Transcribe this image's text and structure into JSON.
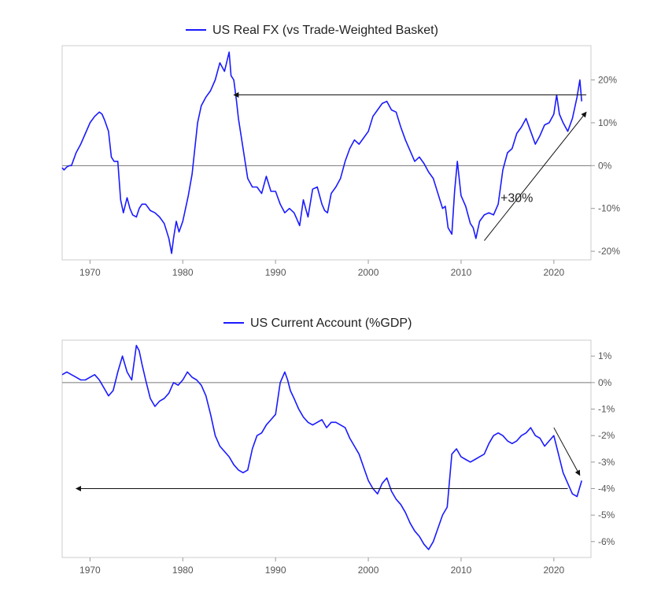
{
  "chart_data": [
    {
      "type": "line",
      "title": "",
      "xlabel": "",
      "ylabel": "",
      "xlim": [
        1967,
        2024
      ],
      "ylim": [
        -22,
        28
      ],
      "y_unit": "%",
      "x_ticks": [
        1970,
        1980,
        1990,
        2000,
        2010,
        2020
      ],
      "y_ticks": [
        20,
        10,
        0,
        -10,
        -20
      ],
      "y_tick_labels": [
        "20%",
        "10%",
        "0%",
        "-10%",
        "-20%"
      ],
      "y_axis_side": "right",
      "grid": false,
      "legend": "top-center",
      "zero_line": true,
      "series": [
        {
          "name": "US Real FX (vs Trade-Weighted Basket)",
          "color": "#1a1aff",
          "x": [
            1967.0,
            1967.2,
            1967.5,
            1967.8,
            1968.0,
            1968.5,
            1969.0,
            1969.5,
            1970.0,
            1970.5,
            1971.0,
            1971.3,
            1971.6,
            1972.0,
            1972.3,
            1972.6,
            1973.0,
            1973.3,
            1973.6,
            1974.0,
            1974.3,
            1974.6,
            1975.0,
            1975.3,
            1975.6,
            1976.0,
            1976.5,
            1977.0,
            1977.5,
            1978.0,
            1978.5,
            1978.8,
            1979.0,
            1979.3,
            1979.6,
            1980.0,
            1980.3,
            1980.6,
            1981.0,
            1981.3,
            1981.6,
            1982.0,
            1982.5,
            1983.0,
            1983.5,
            1984.0,
            1984.5,
            1985.0,
            1985.2,
            1985.5,
            1985.8,
            1986.0,
            1986.5,
            1987.0,
            1987.5,
            1988.0,
            1988.5,
            1989.0,
            1989.5,
            1990.0,
            1990.5,
            1991.0,
            1991.5,
            1992.0,
            1992.3,
            1992.6,
            1993.0,
            1993.5,
            1994.0,
            1994.5,
            1995.0,
            1995.3,
            1995.6,
            1996.0,
            1996.5,
            1997.0,
            1997.5,
            1998.0,
            1998.5,
            1999.0,
            1999.5,
            2000.0,
            2000.5,
            2001.0,
            2001.5,
            2002.0,
            2002.5,
            2003.0,
            2003.5,
            2004.0,
            2004.5,
            2005.0,
            2005.5,
            2006.0,
            2006.5,
            2007.0,
            2007.5,
            2008.0,
            2008.3,
            2008.6,
            2009.0,
            2009.3,
            2009.6,
            2010.0,
            2010.5,
            2011.0,
            2011.3,
            2011.6,
            2012.0,
            2012.5,
            2013.0,
            2013.5,
            2014.0,
            2014.5,
            2015.0,
            2015.5,
            2016.0,
            2016.5,
            2017.0,
            2017.5,
            2018.0,
            2018.5,
            2019.0,
            2019.5,
            2020.0,
            2020.3,
            2020.6,
            2021.0,
            2021.5,
            2022.0,
            2022.5,
            2022.8,
            2023.0
          ],
          "y": [
            -0.5,
            -1.0,
            -0.3,
            0.0,
            0.0,
            3.0,
            5.0,
            7.5,
            10.0,
            11.5,
            12.5,
            12.0,
            10.5,
            8.0,
            2.0,
            1.0,
            1.0,
            -8.0,
            -11.0,
            -7.5,
            -10.0,
            -11.5,
            -12.0,
            -10.0,
            -9.0,
            -9.0,
            -10.5,
            -11.0,
            -12.0,
            -13.5,
            -17.0,
            -20.5,
            -17.0,
            -13.0,
            -15.5,
            -13.0,
            -10.0,
            -7.0,
            -2.0,
            4.0,
            10.0,
            14.0,
            16.0,
            17.5,
            20.0,
            24.0,
            22.0,
            26.5,
            21.0,
            20.0,
            15.0,
            11.0,
            4.0,
            -3.0,
            -5.0,
            -5.0,
            -6.5,
            -2.5,
            -6.0,
            -6.0,
            -9.0,
            -11.0,
            -10.0,
            -11.0,
            -12.5,
            -14.0,
            -8.0,
            -12.0,
            -5.5,
            -5.0,
            -9.0,
            -10.5,
            -11.0,
            -6.5,
            -5.0,
            -3.0,
            1.0,
            4.0,
            6.0,
            5.0,
            6.5,
            8.0,
            11.5,
            13.0,
            14.5,
            15.0,
            13.0,
            12.5,
            9.0,
            6.0,
            3.5,
            1.0,
            2.0,
            0.5,
            -1.5,
            -3.0,
            -6.5,
            -10.0,
            -9.5,
            -14.5,
            -16.0,
            -6.0,
            1.0,
            -7.0,
            -9.5,
            -13.5,
            -14.5,
            -17.0,
            -13.0,
            -11.5,
            -11.0,
            -11.5,
            -9.0,
            -1.0,
            3.0,
            4.0,
            7.5,
            9.0,
            11.0,
            8.0,
            5.0,
            7.0,
            9.5,
            10.0,
            12.0,
            16.5,
            12.0,
            10.0,
            8.0,
            11.0,
            16.0,
            20.0,
            15.0
          ]
        }
      ],
      "annotations": [
        {
          "type": "horizontal-arrow",
          "from_x": 2023.5,
          "to_x": 1985.5,
          "y": 16.5
        },
        {
          "type": "diagonal-arrow",
          "from_x": 2012.5,
          "from_y": -17.5,
          "to_x": 2023.5,
          "to_y": 12.5
        },
        {
          "type": "text",
          "text": "+30%",
          "x": 2016.0,
          "y": -8.5
        }
      ]
    },
    {
      "type": "line",
      "title": "",
      "xlabel": "",
      "ylabel": "",
      "xlim": [
        1967,
        2024
      ],
      "ylim": [
        -6.6,
        1.6
      ],
      "y_unit": "%",
      "x_ticks": [
        1970,
        1980,
        1990,
        2000,
        2010,
        2020
      ],
      "y_ticks": [
        1,
        0,
        -1,
        -2,
        -3,
        -4,
        -5,
        -6
      ],
      "y_tick_labels": [
        "1%",
        "0%",
        "-1%",
        "-2%",
        "-3%",
        "-4%",
        "-5%",
        "-6%"
      ],
      "y_axis_side": "right",
      "grid": false,
      "legend": "top-center",
      "zero_line": true,
      "series": [
        {
          "name": "US Current Account (%GDP)",
          "color": "#1a1aff",
          "x": [
            1967.0,
            1967.5,
            1968.0,
            1968.5,
            1969.0,
            1969.5,
            1970.0,
            1970.5,
            1971.0,
            1971.5,
            1972.0,
            1972.5,
            1973.0,
            1973.5,
            1974.0,
            1974.5,
            1975.0,
            1975.3,
            1975.6,
            1976.0,
            1976.5,
            1977.0,
            1977.5,
            1978.0,
            1978.5,
            1979.0,
            1979.5,
            1980.0,
            1980.5,
            1981.0,
            1981.5,
            1982.0,
            1982.5,
            1983.0,
            1983.5,
            1984.0,
            1984.5,
            1985.0,
            1985.5,
            1986.0,
            1986.5,
            1987.0,
            1987.5,
            1988.0,
            1988.5,
            1989.0,
            1989.5,
            1990.0,
            1990.5,
            1991.0,
            1991.3,
            1991.6,
            1992.0,
            1992.5,
            1993.0,
            1993.5,
            1994.0,
            1994.5,
            1995.0,
            1995.5,
            1996.0,
            1996.5,
            1997.0,
            1997.5,
            1998.0,
            1998.5,
            1999.0,
            1999.5,
            2000.0,
            2000.5,
            2001.0,
            2001.5,
            2002.0,
            2002.5,
            2003.0,
            2003.5,
            2004.0,
            2004.5,
            2005.0,
            2005.5,
            2006.0,
            2006.5,
            2007.0,
            2007.5,
            2008.0,
            2008.5,
            2009.0,
            2009.5,
            2010.0,
            2010.5,
            2011.0,
            2011.5,
            2012.0,
            2012.5,
            2013.0,
            2013.5,
            2014.0,
            2014.5,
            2015.0,
            2015.5,
            2016.0,
            2016.5,
            2017.0,
            2017.5,
            2018.0,
            2018.5,
            2019.0,
            2019.5,
            2020.0,
            2020.5,
            2021.0,
            2021.5,
            2022.0,
            2022.5,
            2023.0
          ],
          "y": [
            0.3,
            0.4,
            0.3,
            0.2,
            0.1,
            0.1,
            0.2,
            0.3,
            0.1,
            -0.2,
            -0.5,
            -0.3,
            0.4,
            1.0,
            0.4,
            0.1,
            1.4,
            1.2,
            0.7,
            0.1,
            -0.6,
            -0.9,
            -0.7,
            -0.6,
            -0.4,
            0.0,
            -0.1,
            0.1,
            0.4,
            0.2,
            0.1,
            -0.1,
            -0.5,
            -1.2,
            -2.0,
            -2.4,
            -2.6,
            -2.8,
            -3.1,
            -3.3,
            -3.4,
            -3.3,
            -2.5,
            -2.0,
            -1.9,
            -1.6,
            -1.4,
            -1.2,
            0.0,
            0.4,
            0.1,
            -0.3,
            -0.6,
            -1.0,
            -1.3,
            -1.5,
            -1.6,
            -1.5,
            -1.4,
            -1.7,
            -1.5,
            -1.5,
            -1.6,
            -1.7,
            -2.1,
            -2.4,
            -2.7,
            -3.2,
            -3.7,
            -4.0,
            -4.2,
            -3.8,
            -3.6,
            -4.1,
            -4.4,
            -4.6,
            -4.9,
            -5.3,
            -5.6,
            -5.8,
            -6.1,
            -6.3,
            -6.0,
            -5.5,
            -5.0,
            -4.7,
            -2.7,
            -2.5,
            -2.8,
            -2.9,
            -3.0,
            -2.9,
            -2.8,
            -2.7,
            -2.3,
            -2.0,
            -1.9,
            -2.0,
            -2.2,
            -2.3,
            -2.2,
            -2.0,
            -1.9,
            -1.7,
            -2.0,
            -2.1,
            -2.4,
            -2.2,
            -2.0,
            -2.7,
            -3.4,
            -3.8,
            -4.2,
            -4.3,
            -3.7
          ]
        }
      ],
      "annotations": [
        {
          "type": "horizontal-arrow",
          "from_x": 2021.5,
          "to_x": 1968.5,
          "y": -4.0
        },
        {
          "type": "diagonal-arrow",
          "from_x": 2020.0,
          "from_y": -1.7,
          "to_x": 2022.8,
          "to_y": -3.5
        }
      ]
    }
  ]
}
